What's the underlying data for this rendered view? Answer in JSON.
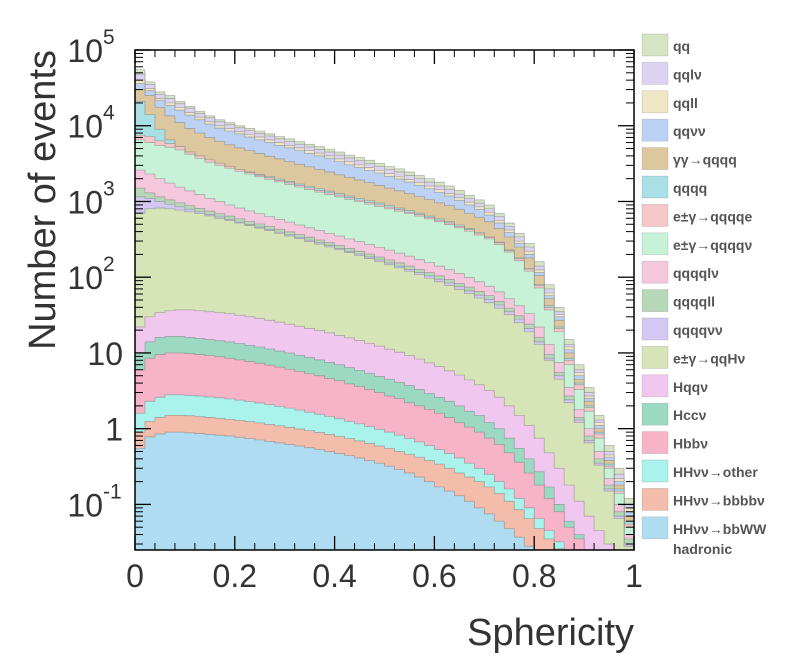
{
  "chart_data": {
    "type": "area",
    "stacked": true,
    "histogram": true,
    "title": "",
    "xlabel": "Sphericity",
    "ylabel": "Number of events",
    "xlim": [
      0,
      1
    ],
    "ylim": [
      0.025,
      100000
    ],
    "y_scale": "log",
    "grid": false,
    "legend_placement": "right",
    "x_ticks": [
      "0",
      "0.2",
      "0.4",
      "0.6",
      "0.8",
      "1"
    ],
    "x_tick_values": [
      0,
      0.2,
      0.4,
      0.6,
      0.8,
      1
    ],
    "y_ticks": [
      {
        "value": 0.1,
        "base": "10",
        "exp": "-1"
      },
      {
        "value": 1,
        "base": "1",
        "exp": ""
      },
      {
        "value": 10,
        "base": "10",
        "exp": ""
      },
      {
        "value": 100,
        "base": "10",
        "exp": "2"
      },
      {
        "value": 1000,
        "base": "10",
        "exp": "3"
      },
      {
        "value": 10000,
        "base": "10",
        "exp": "4"
      },
      {
        "value": 100000,
        "base": "10",
        "exp": "5"
      }
    ],
    "bins": [
      0.0,
      0.02,
      0.04,
      0.06,
      0.08,
      0.1,
      0.12,
      0.14,
      0.16,
      0.18,
      0.2,
      0.22,
      0.24,
      0.26,
      0.28,
      0.3,
      0.32,
      0.34,
      0.36,
      0.38,
      0.4,
      0.42,
      0.44,
      0.46,
      0.48,
      0.5,
      0.52,
      0.54,
      0.56,
      0.58,
      0.6,
      0.62,
      0.64,
      0.66,
      0.68,
      0.7,
      0.72,
      0.74,
      0.76,
      0.78,
      0.8,
      0.82,
      0.84,
      0.86,
      0.88,
      0.9,
      0.92,
      0.94,
      0.96,
      0.98
    ],
    "bin_width": 0.02,
    "stack_order": "first series is top of stack; boundaries are cumulative totals",
    "series": [
      {
        "name": "qq",
        "color": "#d6e4c3",
        "boundary": [
          55000,
          38000,
          28000,
          25000,
          21000,
          18000,
          15500,
          13500,
          12000,
          11000,
          10000,
          9200,
          8500,
          7800,
          7200,
          6700,
          6200,
          5700,
          5300,
          4900,
          4500,
          4100,
          3800,
          3500,
          3200,
          2900,
          2700,
          2450,
          2200,
          2000,
          1800,
          1600,
          1400,
          1200,
          1050,
          900,
          700,
          520,
          380,
          280,
          160,
          80,
          40,
          15,
          7,
          3.5,
          1.5,
          0.6,
          0.3,
          0.12
        ]
      },
      {
        "name": "qqlν",
        "color": "#dcd3f2",
        "boundary": [
          48000,
          35000,
          26000,
          23000,
          19500,
          17000,
          14500,
          12700,
          11300,
          10300,
          9400,
          8600,
          7900,
          7300,
          6700,
          6200,
          5700,
          5250,
          4850,
          4500,
          4100,
          3750,
          3450,
          3150,
          2900,
          2650,
          2450,
          2200,
          2000,
          1800,
          1600,
          1450,
          1250,
          1100,
          950,
          800,
          630,
          470,
          340,
          250,
          140,
          70,
          35,
          13,
          6,
          3,
          1.3,
          0.5,
          0.25,
          0.1
        ]
      },
      {
        "name": "qqll",
        "color": "#efe6c4",
        "boundary": [
          40000,
          31000,
          23000,
          20000,
          17500,
          15000,
          13000,
          11300,
          10000,
          9200,
          8400,
          7700,
          7100,
          6500,
          6000,
          5500,
          5100,
          4700,
          4350,
          4000,
          3650,
          3350,
          3050,
          2800,
          2580,
          2350,
          2150,
          1950,
          1780,
          1600,
          1430,
          1280,
          1120,
          980,
          850,
          720,
          560,
          420,
          300,
          220,
          125,
          62,
          32,
          12,
          5.5,
          2.7,
          1.2,
          0.45,
          0.22,
          0.09
        ]
      },
      {
        "name": "qqνν",
        "color": "#bcd2f4",
        "boundary": [
          36000,
          29000,
          21500,
          18500,
          16000,
          13800,
          12000,
          10500,
          9300,
          8500,
          7800,
          7100,
          6500,
          6000,
          5500,
          5100,
          4700,
          4300,
          4000,
          3700,
          3350,
          3050,
          2800,
          2580,
          2370,
          2150,
          1980,
          1800,
          1630,
          1470,
          1320,
          1180,
          1030,
          900,
          780,
          660,
          520,
          390,
          280,
          200,
          115,
          57,
          30,
          11,
          5,
          2.5,
          1.1,
          0.42,
          0.2,
          0.08
        ]
      },
      {
        "name": "γγ→qqqq",
        "color": "#ddc79e",
        "boundary": [
          30000,
          25000,
          17500,
          13500,
          11000,
          9200,
          8000,
          7000,
          6200,
          5600,
          5100,
          4700,
          4300,
          3950,
          3650,
          3350,
          3100,
          2870,
          2650,
          2450,
          2250,
          2080,
          1920,
          1770,
          1630,
          1500,
          1380,
          1270,
          1160,
          1060,
          960,
          880,
          790,
          700,
          620,
          540,
          440,
          340,
          250,
          180,
          105,
          52,
          27,
          10,
          4.5,
          2.3,
          1.0,
          0.38,
          0.18,
          0.07
        ]
      },
      {
        "name": "qqqq",
        "color": "#a8e0e6",
        "boundary": [
          21000,
          14000,
          9000,
          6500,
          5200,
          4300,
          3800,
          3400,
          3100,
          2850,
          2650,
          2450,
          2280,
          2120,
          1970,
          1830,
          1700,
          1580,
          1470,
          1370,
          1270,
          1180,
          1100,
          1020,
          950,
          880,
          820,
          760,
          700,
          640,
          590,
          540,
          490,
          440,
          390,
          340,
          290,
          230,
          180,
          130,
          80,
          42,
          22,
          8.5,
          4,
          2,
          0.9,
          0.34,
          0.16,
          0.06
        ]
      },
      {
        "name": "e±γ→qqqqe",
        "color": "#f5c7c9",
        "boundary": [
          7500,
          7200,
          6300,
          5800,
          5300,
          4500,
          4000,
          3550,
          3200,
          2900,
          2650,
          2420,
          2220,
          2050,
          1900,
          1760,
          1630,
          1510,
          1400,
          1300,
          1210,
          1120,
          1040,
          970,
          900,
          840,
          780,
          720,
          670,
          615,
          565,
          520,
          470,
          425,
          380,
          335,
          285,
          225,
          175,
          128,
          78,
          40,
          21,
          8,
          3.8,
          1.9,
          0.85,
          0.32,
          0.15,
          0.055
        ]
      },
      {
        "name": "e±γ→qqqqν",
        "color": "#c7f2d8",
        "boundary": [
          6500,
          6000,
          5500,
          5200,
          4800,
          4200,
          3700,
          3300,
          3000,
          2750,
          2500,
          2300,
          2120,
          1960,
          1810,
          1680,
          1550,
          1440,
          1330,
          1240,
          1150,
          1070,
          990,
          920,
          860,
          800,
          745,
          690,
          640,
          590,
          540,
          495,
          450,
          405,
          360,
          320,
          270,
          215,
          165,
          120,
          72,
          37,
          19,
          7,
          3.3,
          1.7,
          0.75,
          0.3,
          0.14,
          0.05
        ]
      },
      {
        "name": "qqqqlν",
        "color": "#f4c7dc",
        "boundary": [
          2600,
          2300,
          2000,
          1750,
          1550,
          1380,
          1230,
          1100,
          1000,
          900,
          820,
          750,
          690,
          630,
          580,
          535,
          490,
          450,
          415,
          380,
          350,
          320,
          295,
          270,
          248,
          228,
          208,
          190,
          172,
          156,
          140,
          126,
          112,
          99,
          87,
          76,
          64,
          52,
          42,
          33,
          22,
          13,
          7.5,
          3.5,
          1.8,
          1.0,
          0.5,
          0.22,
          0.1,
          0.04
        ]
      },
      {
        "name": "qqqqll",
        "color": "#b6d8b8",
        "boundary": [
          1500,
          1300,
          1150,
          1050,
          960,
          880,
          810,
          745,
          690,
          640,
          590,
          545,
          505,
          465,
          430,
          397,
          365,
          337,
          310,
          285,
          262,
          240,
          220,
          202,
          185,
          169,
          154,
          140,
          127,
          115,
          104,
          93,
          83,
          74,
          65,
          57,
          48,
          39,
          31,
          24,
          16,
          9.5,
          5.5,
          2.7,
          1.4,
          0.8,
          0.4,
          0.18,
          0.08,
          0.035
        ]
      },
      {
        "name": "qqqqνν",
        "color": "#d3c8f1",
        "boundary": [
          1150,
          1100,
          1000,
          920,
          850,
          790,
          730,
          675,
          625,
          580,
          535,
          495,
          460,
          425,
          393,
          363,
          335,
          309,
          284,
          261,
          240,
          220,
          202,
          185,
          169,
          154,
          140,
          127,
          115,
          104,
          94,
          84,
          75,
          66,
          58,
          51,
          43,
          35,
          28,
          21,
          14,
          8.5,
          5,
          2.4,
          1.3,
          0.7,
          0.35,
          0.16,
          0.07,
          0.03
        ]
      },
      {
        "name": "e±γ→qqHν",
        "color": "#d6e4b8",
        "boundary": [
          700,
          800,
          820,
          800,
          770,
          730,
          690,
          645,
          600,
          560,
          520,
          480,
          445,
          412,
          380,
          350,
          323,
          297,
          273,
          251,
          230,
          211,
          193,
          176,
          161,
          146,
          133,
          120,
          108,
          97,
          87,
          78,
          69,
          61,
          53,
          46,
          39,
          32,
          25,
          19,
          13,
          8,
          4.5,
          2.2,
          1.2,
          0.65,
          0.33,
          0.15,
          0.065,
          0.028
        ]
      },
      {
        "name": "Hqqν",
        "color": "#f0c8ef",
        "boundary": [
          22,
          30,
          34,
          36,
          37,
          37,
          36,
          35,
          34,
          33,
          31.5,
          30,
          28.5,
          27,
          25.5,
          24,
          22.5,
          21,
          19.7,
          18.4,
          17,
          15.8,
          14.6,
          13.4,
          12.3,
          11.2,
          10.2,
          9.2,
          8.3,
          7.4,
          6.6,
          5.8,
          5.1,
          4.4,
          3.8,
          3.2,
          2.6,
          2,
          1.5,
          1.1,
          0.75,
          0.48,
          0.3,
          0.18,
          0.11,
          0.07,
          0.045,
          0.03,
          0.02,
          0.015
        ]
      },
      {
        "name": "Hccν",
        "color": "#9bd9c3",
        "boundary": [
          10,
          14,
          16,
          16.5,
          16.5,
          16,
          15.5,
          15,
          14.5,
          14,
          13.3,
          12.6,
          12,
          11.3,
          10.6,
          10,
          9.3,
          8.7,
          8.1,
          7.5,
          7,
          6.4,
          5.9,
          5.4,
          4.9,
          4.5,
          4.1,
          3.7,
          3.3,
          2.9,
          2.6,
          2.3,
          2,
          1.7,
          1.5,
          1.2,
          1,
          0.75,
          0.55,
          0.4,
          0.27,
          0.17,
          0.1,
          0.06,
          0.04,
          0.025,
          0.018,
          0.013,
          0.01,
          0.008
        ]
      },
      {
        "name": "Hbbν",
        "color": "#f7b4c8",
        "boundary": [
          6,
          8.5,
          9.5,
          10,
          10,
          9.8,
          9.5,
          9.2,
          8.9,
          8.5,
          8.1,
          7.7,
          7.3,
          6.9,
          6.5,
          6.1,
          5.7,
          5.3,
          5,
          4.6,
          4.3,
          3.9,
          3.6,
          3.3,
          3,
          2.7,
          2.5,
          2.2,
          2,
          1.8,
          1.6,
          1.4,
          1.2,
          1.05,
          0.9,
          0.75,
          0.62,
          0.48,
          0.36,
          0.26,
          0.18,
          0.12,
          0.08,
          0.05,
          0.035,
          0.025,
          0.018,
          0.013,
          0.01,
          0.008
        ]
      },
      {
        "name": "HHνν→other",
        "color": "#aaf2ec",
        "boundary": [
          1.6,
          2.3,
          2.6,
          2.8,
          2.8,
          2.75,
          2.7,
          2.62,
          2.55,
          2.47,
          2.38,
          2.28,
          2.18,
          2.08,
          1.97,
          1.87,
          1.76,
          1.65,
          1.55,
          1.45,
          1.35,
          1.25,
          1.16,
          1.07,
          0.98,
          0.9,
          0.82,
          0.74,
          0.67,
          0.6,
          0.53,
          0.47,
          0.41,
          0.35,
          0.3,
          0.25,
          0.2,
          0.16,
          0.12,
          0.09,
          0.065,
          0.045,
          0.032,
          0.024,
          0.018,
          0.014,
          0.011,
          0.009,
          0.007,
          0.006
        ]
      },
      {
        "name": "HHνν→bbbbν",
        "color": "#f4bcaa",
        "boundary": [
          0.9,
          1.25,
          1.4,
          1.5,
          1.5,
          1.48,
          1.45,
          1.41,
          1.37,
          1.33,
          1.29,
          1.24,
          1.19,
          1.14,
          1.09,
          1.04,
          0.99,
          0.94,
          0.89,
          0.84,
          0.79,
          0.74,
          0.69,
          0.64,
          0.59,
          0.55,
          0.5,
          0.46,
          0.42,
          0.38,
          0.34,
          0.3,
          0.26,
          0.23,
          0.2,
          0.17,
          0.14,
          0.11,
          0.085,
          0.065,
          0.048,
          0.035,
          0.026,
          0.02,
          0.015,
          0.012,
          0.0095,
          0.0078,
          0.0063,
          0.0052
        ]
      },
      {
        "name": "HHνν→bbWW hadronic",
        "label_lines": [
          "HHνν→bbWW",
          "hadronic"
        ],
        "color": "#afdcf0",
        "boundary": [
          0.55,
          0.78,
          0.85,
          0.9,
          0.9,
          0.88,
          0.86,
          0.84,
          0.82,
          0.8,
          0.77,
          0.74,
          0.71,
          0.68,
          0.65,
          0.62,
          0.59,
          0.56,
          0.53,
          0.5,
          0.47,
          0.44,
          0.41,
          0.38,
          0.35,
          0.32,
          0.29,
          0.26,
          0.23,
          0.2,
          0.17,
          0.15,
          0.13,
          0.11,
          0.09,
          0.075,
          0.06,
          0.048,
          0.037,
          0.028,
          0.021,
          0.016,
          0.012,
          0.0095,
          0.0075,
          0.006,
          0.0048,
          0.0039,
          0.0032,
          0.0026
        ]
      }
    ]
  }
}
